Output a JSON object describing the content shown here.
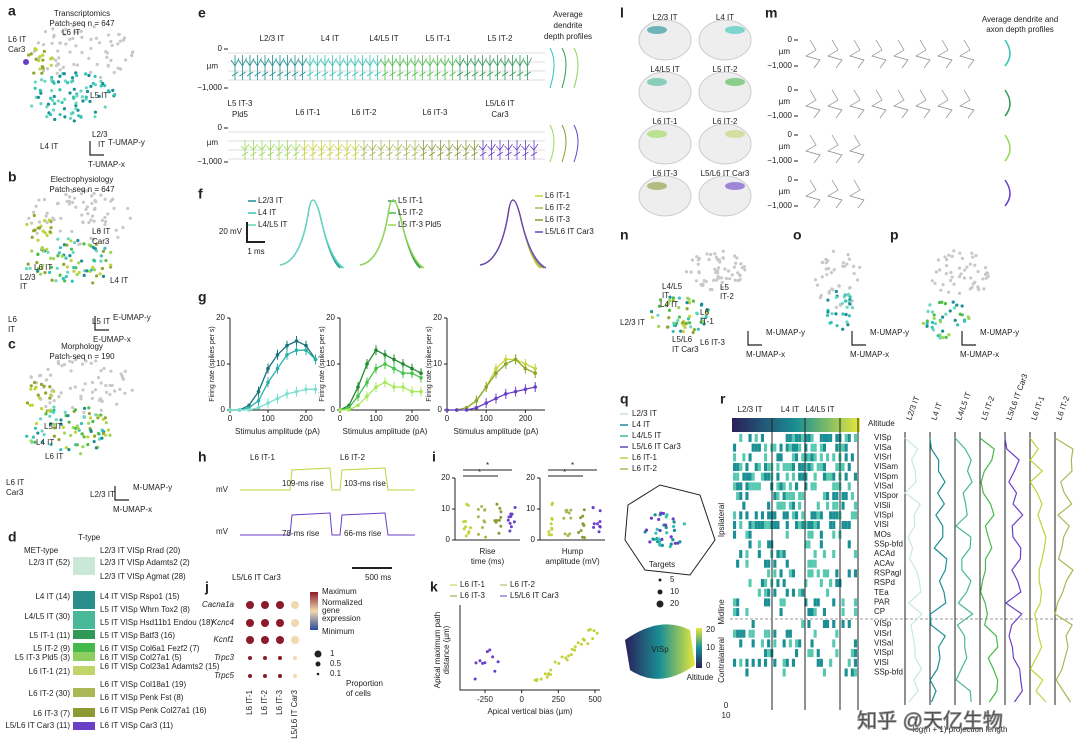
{
  "a": {
    "letter": "a",
    "title": "Transcriptomics",
    "subtitle": "Patch-seq n = 647",
    "labels": [
      "L6 IT",
      "Car3",
      "L6 IT",
      "L5 IT",
      "L2/3",
      "IT",
      "L4 IT"
    ],
    "axis_y": "T-UMAP-y",
    "axis_x": "T-UMAP-x"
  },
  "b": {
    "letter": "b",
    "title": "Electrophysiology",
    "subtitle": "Patch-seq n = 647",
    "labels": [
      "L6 IT",
      "Car3",
      "L2/3",
      "IT",
      "L6 IT",
      "L4 IT",
      "L6",
      "IT",
      "L5 IT"
    ],
    "axis_y": "E-UMAP-y",
    "axis_x": "E-UMAP-x"
  },
  "c": {
    "letter": "c",
    "title": "Morphology",
    "subtitle": "Patch-seq n = 190",
    "labels": [
      "L5 IT",
      "L4 IT",
      "L6 IT",
      "Car3",
      "L6 IT",
      "L2/3 IT"
    ],
    "axis_y": "M-UMAP-y",
    "axis_x": "M-UMAP-x"
  },
  "d": {
    "letter": "d",
    "head_met": "MET-type",
    "head_t": "T-type",
    "met_types": [
      "L2/3 IT (52)",
      "L4 IT (14)",
      "L4/L5 IT (30)",
      "L5 IT-1 (11)",
      "L5 IT-2 (9)",
      "L5 IT-3 Pld5 (3)",
      "L6 IT-1 (21)",
      "L6 IT-2 (30)",
      "L6 IT-3 (7)",
      "L5/L6 IT Car3 (11)"
    ],
    "t_types": [
      "L2/3 IT VISp Rrad (20)",
      "L2/3 IT VISp Adamts2 (2)",
      "L2/3 IT VISp Agmat (28)",
      "L4 IT VISp Rspo1 (15)",
      "L5 IT VISp Whrn Tox2 (8)",
      "L5 IT VISp Hsd11b1 Endou (18)",
      "L5 IT VISp Batf3 (16)",
      "L6 IT VISp Col6a1 Fezf2 (7)",
      "L6 IT VISp Col27a1 (5)",
      "L6 IT VISp Col23a1 Adamts2 (15)",
      "L6 IT VISp Col18a1 (19)",
      "L6 IT VISp Penk Fst (8)",
      "L6 IT VISp Penk Col27a1 (16)",
      "L6 IT VISp Car3 (11)"
    ]
  },
  "e": {
    "letter": "e",
    "row1": [
      "L2/3 IT",
      "L4 IT",
      "L4/L5 IT",
      "L5 IT-1",
      "L5 IT-2"
    ],
    "row2": [
      "L5 IT-3",
      "Pld5",
      "L6 IT-1",
      "L6 IT-2",
      "L6 IT-3",
      "L5/L6 IT",
      "Car3"
    ],
    "profiles": [
      "Average",
      "dendrite",
      "depth profiles"
    ],
    "yticks": [
      0,
      {
        "value": -1000,
        "label": "−1,000"
      }
    ],
    "unit": "µm"
  },
  "f": {
    "letter": "f",
    "groups": [
      [
        "L2/3 IT",
        "L4 IT",
        "L4/L5 IT"
      ],
      [
        "L5 IT-1",
        "L5 IT-2",
        "L5 IT-3 Pld5"
      ],
      [
        "L6 IT-1",
        "L6 IT-2",
        "L6 IT-3",
        "L5/L6 IT Car3"
      ]
    ],
    "scale_v": "20 mV",
    "scale_t": "1 ms"
  },
  "g": {
    "letter": "g",
    "charts": [
      {
        "type": "line",
        "xlabel": "Stimulus amplitude (pA)",
        "ylabel": "Firing rate (spikes per s)",
        "xlim": [
          0,
          250
        ],
        "xticks": [
          0,
          100,
          200
        ],
        "ylim": [
          0,
          20
        ],
        "yticks": [
          0,
          10,
          20
        ],
        "x": [
          0,
          25,
          50,
          75,
          100,
          125,
          150,
          175,
          200,
          225
        ],
        "series": [
          {
            "color": "#17737c",
            "values": [
              0,
              0,
              1,
              4,
              9,
              12,
              14,
              15,
              14,
              11
            ]
          },
          {
            "color": "#2bb0a8",
            "values": [
              0,
              0,
              0.5,
              2,
              6,
              9,
              12,
              13,
              13,
              11
            ]
          },
          {
            "color": "#7ddfd0",
            "values": [
              0,
              0,
              0,
              0.5,
              1.5,
              2.5,
              3.5,
              4,
              4.5,
              4.5
            ]
          }
        ]
      },
      {
        "type": "line",
        "xlabel": "Stimulus amplitude (pA)",
        "ylabel": "Firing rate (spikes per s)",
        "xlim": [
          0,
          250
        ],
        "xticks": [
          0,
          100,
          200
        ],
        "ylim": [
          0,
          20
        ],
        "yticks": [
          0,
          10,
          20
        ],
        "x": [
          0,
          25,
          50,
          75,
          100,
          125,
          150,
          175,
          200,
          225
        ],
        "series": [
          {
            "color": "#1f8a2e",
            "values": [
              0,
              1,
              5,
              10,
              13,
              12,
              11,
              10,
              9,
              8
            ]
          },
          {
            "color": "#47c24a",
            "values": [
              0,
              0.5,
              3,
              6,
              9,
              10,
              9,
              8,
              8,
              7
            ]
          },
          {
            "color": "#a6e85a",
            "values": [
              0,
              0,
              1,
              3,
              5,
              6,
              5,
              5,
              4,
              4
            ]
          }
        ]
      },
      {
        "type": "line",
        "xlabel": "Stimulus amplitude (pA)",
        "ylabel": "Firing rate (spikes per s)",
        "xlim": [
          0,
          250
        ],
        "xticks": [
          0,
          100,
          200
        ],
        "ylim": [
          0,
          20
        ],
        "yticks": [
          0,
          10,
          20
        ],
        "x": [
          0,
          25,
          50,
          75,
          100,
          125,
          150,
          175,
          200,
          225
        ],
        "series": [
          {
            "color": "#c8d43a",
            "values": [
              0,
              0,
              0.5,
              2,
              5,
              9,
              11,
              11,
              10,
              9
            ]
          },
          {
            "color": "#8aa62a",
            "values": [
              0,
              0,
              0.5,
              2,
              5,
              8,
              10,
              11,
              9,
              8
            ]
          },
          {
            "color": "#6a3fc8",
            "values": [
              0,
              0,
              0,
              0.5,
              1.5,
              2.5,
              3.5,
              4,
              4.5,
              5
            ]
          }
        ]
      }
    ]
  },
  "h": {
    "letter": "h",
    "labels": [
      "L6 IT-1",
      "L6 IT-2",
      "mV",
      "109-ms rise",
      "103-ms rise",
      "mV",
      "78-ms rise",
      "66-ms rise",
      "L5/L6 IT Car3",
      "500 ms"
    ]
  },
  "i": {
    "letter": "i",
    "ylim": [
      0,
      20
    ],
    "yticks": [
      0,
      10,
      20
    ],
    "xlabels": [
      [
        "Rise",
        "time (ms)"
      ],
      [
        "Hump",
        "amplitude (mV)"
      ]
    ],
    "stars": [
      "*",
      "*",
      "*",
      "*"
    ]
  },
  "j": {
    "letter": "j",
    "genes": [
      "Cacna1a",
      "Kcnc4",
      "Kcnf1",
      "Trpc3",
      "Trpc5"
    ],
    "columns": [
      "L6 IT-1",
      "L6 IT-2",
      "L6 IT-3",
      "L5/L6 IT Car3"
    ],
    "legend": [
      "Maximum",
      "Normalized",
      "gene",
      "expression",
      "Minimum"
    ],
    "sizes": [
      "1",
      "0.5",
      "0.1"
    ],
    "size_title": [
      "Proportion",
      "of cells"
    ]
  },
  "k": {
    "letter": "k",
    "legend": [
      "L6 IT-1",
      "L6 IT-2",
      "L6 IT-3",
      "L5/L6 IT Car3"
    ],
    "xlabel": "Apical vertical bias (µm)",
    "ylabel": [
      "Apical maximum path",
      "distance (µm)"
    ],
    "xticks": [
      -250,
      0,
      250,
      500
    ]
  },
  "l": {
    "letter": "l",
    "labels": [
      "L2/3 IT",
      "L4 IT",
      "L4/L5 IT",
      "L5 IT-2",
      "L6 IT-1",
      "L6 IT-2",
      "L6 IT-3",
      "L5/L6 IT Car3"
    ]
  },
  "m": {
    "letter": "m",
    "title": [
      "Average dendrite and",
      "axon depth profiles"
    ],
    "yticks": [
      0,
      {
        "value": -1000,
        "label": "−1,000"
      }
    ],
    "unit": "µm"
  },
  "n": {
    "letter": "n",
    "labels": [
      "L4/L5",
      "IT",
      "L4 IT",
      "L2/3 IT",
      "L5",
      "IT-2",
      "L6",
      "IT-1",
      "L6 IT-3",
      "L5/L6",
      "IT Car3"
    ],
    "axis_y": "M-UMAP-y",
    "axis_x": "M-UMAP-x"
  },
  "o": {
    "letter": "o",
    "axis_y": "M-UMAP-y",
    "axis_x": "M-UMAP-x"
  },
  "p": {
    "letter": "p",
    "axis_y": "M-UMAP-y",
    "axis_x": "M-UMAP-x"
  },
  "q": {
    "letter": "q",
    "legend": [
      "L2/3 IT",
      "L4 IT",
      "L4/L5 IT",
      "L5/L6 IT Car3",
      "L6 IT-1",
      "L6 IT-2"
    ],
    "targets": "Targets",
    "sizes": [
      "5",
      "10",
      "20"
    ],
    "altitude": "Altitude",
    "alt_ticks": [
      "0",
      "10",
      "20"
    ],
    "area": "VISp"
  },
  "r": {
    "letter": "r",
    "columns": [
      "L2/3 IT",
      "L4 IT",
      "L4/L5 IT"
    ],
    "altitude": "Altitude",
    "ipsi": [
      "VISp",
      "VISa",
      "VISrl",
      "VISam",
      "VISpm",
      "VISal",
      "VISpor",
      "VISli",
      "VISpl",
      "VISl",
      "MOs",
      "SSp-bfd",
      "ACAd",
      "ACAv",
      "RSPagl",
      "RSPd",
      "TEa",
      "PAR",
      "CP"
    ],
    "contra": [
      "VISp",
      "VISrl",
      "VISal",
      "VISpl",
      "VISl",
      "SSp-bfd"
    ],
    "side_labels": [
      "Ipsilateral",
      "Contralateral",
      "Midline"
    ],
    "profile_columns": [
      "L2/3 IT",
      "L4 IT",
      "L4/L5 IT",
      "L5 IT-2",
      "L5/L6 IT Car3",
      "L6 IT-1",
      "L6 IT-2"
    ],
    "scale": [
      "0",
      "10"
    ],
    "xlabel": "log(n + 1) projection length"
  },
  "watermark": "知乎 @天亿生物"
}
